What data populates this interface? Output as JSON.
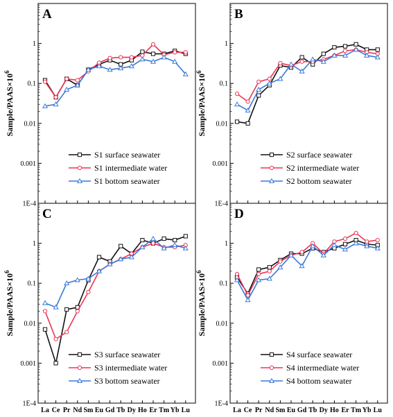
{
  "colors": {
    "surface": "#111111",
    "intermediate": "#ee3355",
    "bottom": "#3a78d8"
  },
  "chart_data": {
    "type": "line",
    "yscale": "log",
    "ylim": [
      0.0001,
      10
    ],
    "ylabel": "Sample/PAAS×10",
    "ylabel_sup": "6",
    "y_ticks": [
      "1E-4",
      "0.001",
      "0.01",
      "0.1",
      "1"
    ],
    "categories": [
      "La",
      "Ce",
      "Pr",
      "Nd",
      "Sm",
      "Eu",
      "Gd",
      "Tb",
      "Dy",
      "Ho",
      "Er",
      "Tm",
      "Yb",
      "Lu"
    ],
    "legend_position": "bottom-center",
    "panels": [
      {
        "letter": "A",
        "series": [
          {
            "name": "S1 surface seawater",
            "marker": "square",
            "values": [
              0.12,
              0.045,
              0.13,
              0.09,
              0.22,
              0.3,
              0.38,
              0.3,
              0.38,
              0.62,
              0.55,
              0.55,
              0.65,
              0.55
            ]
          },
          {
            "name": "S1 intermediate water",
            "marker": "circle",
            "values": [
              0.11,
              0.045,
              0.13,
              0.12,
              0.2,
              0.33,
              0.43,
              0.45,
              0.45,
              0.5,
              0.95,
              0.52,
              0.6,
              0.6
            ]
          },
          {
            "name": "S1 bottom seawater",
            "marker": "triangle",
            "values": [
              0.027,
              0.03,
              0.07,
              0.09,
              0.22,
              0.27,
              0.22,
              0.24,
              0.27,
              0.4,
              0.35,
              0.45,
              0.35,
              0.17
            ]
          }
        ]
      },
      {
        "letter": "B",
        "series": [
          {
            "name": "S2 surface seawater",
            "marker": "square",
            "values": [
              0.011,
              0.01,
              0.05,
              0.09,
              0.28,
              0.25,
              0.45,
              0.3,
              0.55,
              0.8,
              0.85,
              0.95,
              0.7,
              0.7
            ]
          },
          {
            "name": "S2 intermediate water",
            "marker": "circle",
            "values": [
              0.055,
              0.035,
              0.11,
              0.13,
              0.32,
              0.28,
              0.35,
              0.35,
              0.4,
              0.5,
              0.65,
              0.7,
              0.6,
              0.55
            ]
          },
          {
            "name": "S2 bottom seawater",
            "marker": "triangle",
            "values": [
              0.03,
              0.021,
              0.07,
              0.1,
              0.13,
              0.3,
              0.2,
              0.4,
              0.35,
              0.5,
              0.5,
              0.7,
              0.5,
              0.45
            ]
          }
        ]
      },
      {
        "letter": "C",
        "series": [
          {
            "name": "S3 surface seawater",
            "marker": "square",
            "values": [
              0.007,
              0.001,
              0.022,
              0.025,
              0.12,
              0.45,
              0.35,
              0.85,
              0.55,
              1.2,
              1.0,
              1.3,
              1.2,
              1.5
            ]
          },
          {
            "name": "S3 intermediate water",
            "marker": "circle",
            "values": [
              0.02,
              0.004,
              0.006,
              0.02,
              0.06,
              0.2,
              0.3,
              0.4,
              0.55,
              0.8,
              1.0,
              0.8,
              0.8,
              0.9
            ]
          },
          {
            "name": "S3 bottom seawater",
            "marker": "triangle",
            "values": [
              0.032,
              0.025,
              0.1,
              0.12,
              0.13,
              0.2,
              0.3,
              0.4,
              0.45,
              0.8,
              1.3,
              0.75,
              0.9,
              0.75
            ]
          }
        ]
      },
      {
        "letter": "D",
        "series": [
          {
            "name": "S4 surface seawater",
            "marker": "square",
            "values": [
              0.14,
              0.055,
              0.22,
              0.25,
              0.38,
              0.55,
              0.55,
              0.75,
              0.6,
              0.75,
              0.95,
              1.2,
              0.95,
              0.9
            ]
          },
          {
            "name": "S4 intermediate water",
            "marker": "circle",
            "values": [
              0.17,
              0.05,
              0.17,
              0.2,
              0.35,
              0.5,
              0.6,
              1.0,
              0.55,
              1.1,
              1.3,
              1.8,
              1.1,
              1.2
            ]
          },
          {
            "name": "S4 bottom seawater",
            "marker": "triangle",
            "values": [
              0.12,
              0.038,
              0.12,
              0.13,
              0.25,
              0.5,
              0.27,
              0.85,
              0.5,
              0.9,
              0.7,
              1.0,
              0.85,
              0.75
            ]
          }
        ]
      }
    ]
  }
}
